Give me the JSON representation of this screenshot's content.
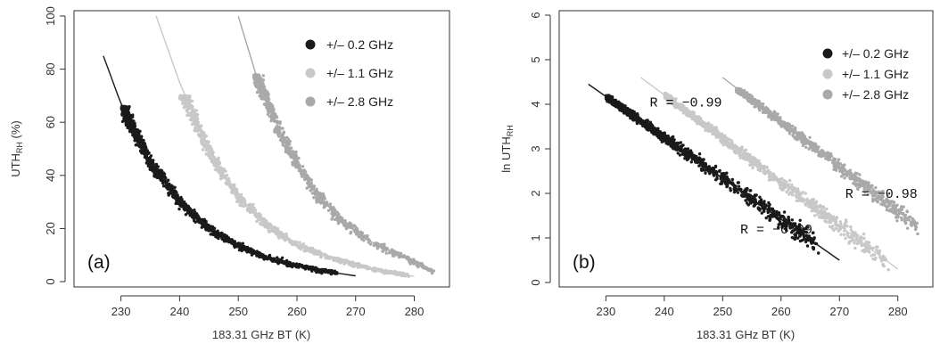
{
  "chart_data": [
    {
      "type": "scatter",
      "panel_label": "(a)",
      "xlabel": "183.31 GHz BT (K)",
      "ylabel_main": "UTH",
      "ylabel_sub": "RH",
      "ylabel_unit": " (%)",
      "xlim": [
        222,
        286
      ],
      "ylim": [
        -2,
        102
      ],
      "x_ticks": [
        230,
        240,
        250,
        260,
        270,
        280
      ],
      "y_ticks": [
        0,
        20,
        40,
        60,
        80,
        100
      ],
      "y_scale": "linear",
      "legend_position": "top-right",
      "series": [
        {
          "name": "+/– 0.2 GHz",
          "color": "#1a1a1a",
          "points_x_range": [
            230.3,
            267
          ],
          "points_y_max": 66,
          "fit_line": {
            "x": [
              227,
              230,
              235,
              240,
              245,
              250,
              255,
              260,
              265,
              270
            ],
            "y": [
              85,
              67,
              45,
              30,
              20,
              13.5,
              9,
              6,
              3.8,
              2.2
            ]
          }
        },
        {
          "name": "+/– 1.1 GHz",
          "color": "#c8c8c8",
          "points_x_range": [
            240.2,
            279
          ],
          "points_y_max": 70,
          "fit_line": {
            "x": [
              236,
              240,
              245,
              250,
              255,
              260,
              265,
              270,
              275,
              280
            ],
            "y": [
              100,
              75,
              49,
              32,
              21,
              14,
              9.4,
              6.3,
              3.8,
              2.0
            ]
          }
        },
        {
          "name": "+/– 2.8 GHz",
          "color": "#a9a9a9",
          "points_x_range": [
            252.8,
            283
          ],
          "points_y_max": 78,
          "fit_line": {
            "x": [
              250,
              253,
              258,
              263,
              268,
              273,
              278,
              283
            ],
            "y": [
              100,
              78,
              52,
              34,
              22,
              14.5,
              9.5,
              4
            ]
          }
        }
      ]
    },
    {
      "type": "scatter",
      "panel_label": "(b)",
      "xlabel": "183.31 GHz BT (K)",
      "ylabel_main": "ln UTH",
      "ylabel_sub": "RH",
      "ylabel_unit": "",
      "xlim": [
        222,
        286
      ],
      "ylim": [
        -0.1,
        6.1
      ],
      "x_ticks": [
        230,
        240,
        250,
        260,
        270,
        280
      ],
      "y_ticks": [
        0,
        1,
        2,
        3,
        4,
        5,
        6
      ],
      "y_scale": "linear",
      "legend_position": "top-right",
      "annotations": [
        {
          "text": "R  =  −0.99",
          "x": 237.5,
          "y": 3.95
        },
        {
          "text": "R  =  −0.98",
          "x": 271,
          "y": 1.9
        },
        {
          "text": "R  =  −0.99",
          "x": 253,
          "y": 1.1
        }
      ],
      "series": [
        {
          "name": "+/– 0.2 GHz",
          "color": "#1a1a1a",
          "points_x_range": [
            230.2,
            266
          ],
          "points_y_max": 4.2,
          "fit_line": {
            "x": [
              227,
              270
            ],
            "y": [
              4.45,
              0.5
            ]
          }
        },
        {
          "name": "+/– 1.1 GHz",
          "color": "#c8c8c8",
          "points_x_range": [
            240.2,
            278
          ],
          "points_y_max": 4.25,
          "fit_line": {
            "x": [
              236,
              280
            ],
            "y": [
              4.6,
              0.3
            ]
          }
        },
        {
          "name": "+/– 2.8 GHz",
          "color": "#a9a9a9",
          "points_x_range": [
            252.5,
            283
          ],
          "points_y_max": 4.35,
          "fit_line": {
            "x": [
              250,
              283
            ],
            "y": [
              4.6,
              1.3
            ]
          }
        }
      ]
    }
  ]
}
